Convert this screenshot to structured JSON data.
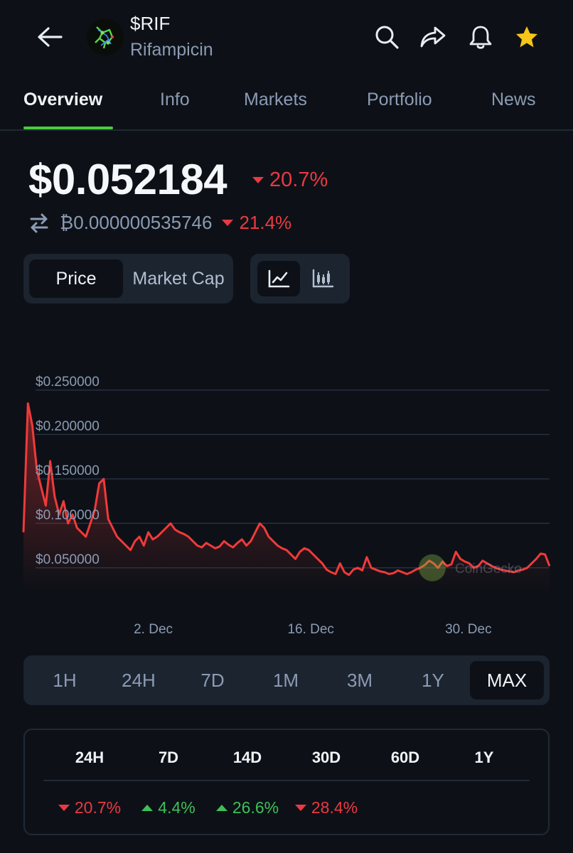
{
  "header": {
    "symbol": "$RIF",
    "name": "Rifampicin",
    "icons": [
      "back-arrow-icon",
      "search-icon",
      "share-icon",
      "bell-icon",
      "star-icon"
    ],
    "star_color": "#f5c518"
  },
  "tabs": [
    {
      "label": "Overview",
      "active": true
    },
    {
      "label": "Info",
      "active": false
    },
    {
      "label": "Markets",
      "active": false
    },
    {
      "label": "Portfolio",
      "active": false
    },
    {
      "label": "News",
      "active": false
    }
  ],
  "price": {
    "usd": "$0.052184",
    "usd_change": "20.7%",
    "btc": "₿0.000000535746",
    "btc_change": "21.4%"
  },
  "toggles": {
    "price_label": "Price",
    "market_cap_label": "Market Cap",
    "selected": "Price",
    "chart_type_selected": "line"
  },
  "chart_data": {
    "type": "line",
    "series": [
      {
        "color": "#f03a3a",
        "values": [
          0.09,
          0.235,
          0.21,
          0.16,
          0.14,
          0.12,
          0.17,
          0.13,
          0.11,
          0.125,
          0.1,
          0.11,
          0.095,
          0.09,
          0.085,
          0.1,
          0.115,
          0.145,
          0.15,
          0.105,
          0.095,
          0.085,
          0.08,
          0.075,
          0.07,
          0.08,
          0.085,
          0.075,
          0.09,
          0.082,
          0.085,
          0.09,
          0.095,
          0.1,
          0.093,
          0.09,
          0.088,
          0.085,
          0.08,
          0.075,
          0.073,
          0.078,
          0.075,
          0.072,
          0.074,
          0.08,
          0.076,
          0.073,
          0.078,
          0.082,
          0.075,
          0.08,
          0.09,
          0.1,
          0.095,
          0.085,
          0.08,
          0.075,
          0.072,
          0.07,
          0.065,
          0.06,
          0.068,
          0.072,
          0.07,
          0.065,
          0.06,
          0.055,
          0.048,
          0.045,
          0.043,
          0.055,
          0.045,
          0.042,
          0.048,
          0.05,
          0.047,
          0.062,
          0.05,
          0.048,
          0.046,
          0.045,
          0.043,
          0.044,
          0.047,
          0.045,
          0.043,
          0.045,
          0.048,
          0.05,
          0.053,
          0.058,
          0.055,
          0.05,
          0.057,
          0.052,
          0.054,
          0.068,
          0.06,
          0.057,
          0.055,
          0.05,
          0.052,
          0.058,
          0.055,
          0.052,
          0.05,
          0.048,
          0.047,
          0.046,
          0.045,
          0.047,
          0.048,
          0.05,
          0.055,
          0.06,
          0.066,
          0.065,
          0.052
        ]
      }
    ],
    "y_ticks": [
      "$0.250000",
      "$0.200000",
      "$0.150000",
      "$0.100000",
      "$0.050000"
    ],
    "y_tick_values": [
      0.25,
      0.2,
      0.15,
      0.1,
      0.05
    ],
    "x_ticks": [
      "2. Dec",
      "16. Dec",
      "30. Dec"
    ],
    "x_tick_positions": [
      0.26,
      0.535,
      0.81
    ],
    "ylim": [
      0.025,
      0.265
    ],
    "grid": true,
    "watermark": "CoinGecko"
  },
  "range": {
    "options": [
      "1H",
      "24H",
      "7D",
      "1M",
      "3M",
      "1Y",
      "MAX"
    ],
    "selected": "MAX"
  },
  "performance": {
    "headers": [
      "24H",
      "7D",
      "14D",
      "30D",
      "60D",
      "1Y"
    ],
    "values": [
      {
        "text": "20.7%",
        "dir": "down"
      },
      {
        "text": "4.4%",
        "dir": "up"
      },
      {
        "text": "26.6%",
        "dir": "up"
      },
      {
        "text": "28.4%",
        "dir": "down"
      }
    ],
    "neg_color": "#ea3943",
    "pos_color": "#3fbf5a"
  }
}
